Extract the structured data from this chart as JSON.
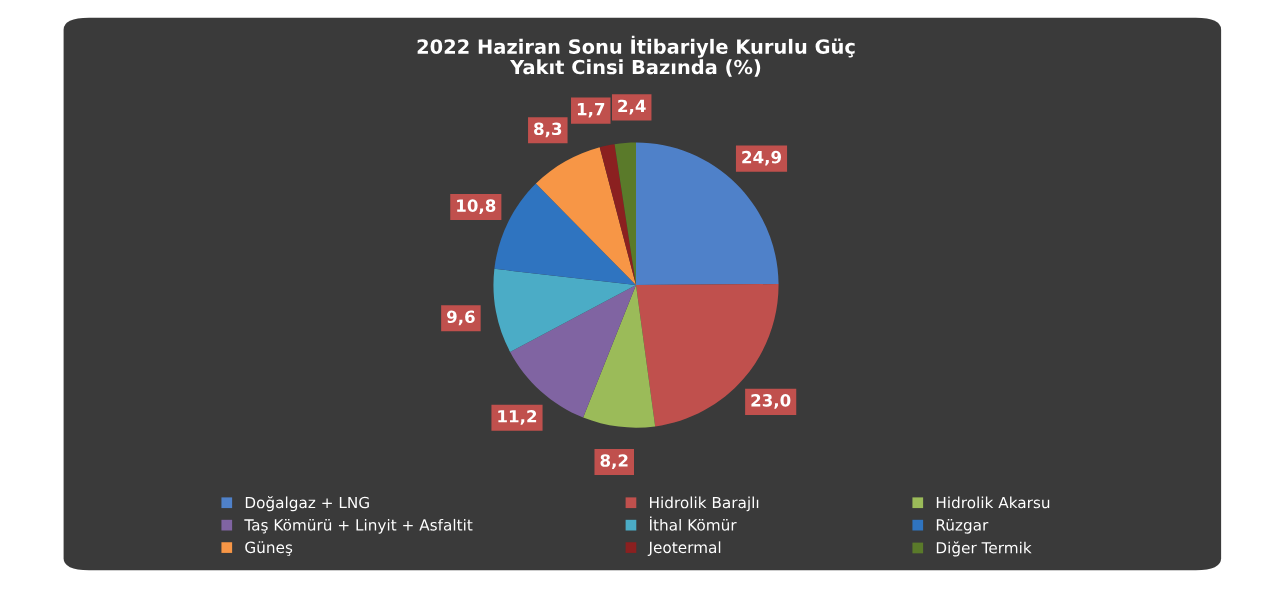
{
  "chart_data": {
    "type": "pie",
    "title": "2022 Haziran Sonu İtibariyle Kurulu Güç\nYakıt Cinsi Bazında (%)",
    "categories": [
      "Doğalgaz + LNG",
      "Hidrolik Barajlı",
      "Hidrolik Akarsu",
      "Taş Kömürü + Linyit + Asfaltit",
      "İthal Kömür",
      "Rüzgar",
      "Güneş",
      "Jeotermal",
      "Diğer Termik"
    ],
    "values": [
      24.9,
      23.0,
      8.2,
      11.2,
      9.6,
      10.8,
      8.3,
      1.7,
      2.4
    ],
    "value_labels": [
      "24,9",
      "23,0",
      "8,2",
      "11,2",
      "9,6",
      "10,8",
      "8,3",
      "1,7",
      "2,4"
    ],
    "colors": [
      "#4f81c9",
      "#c0504d",
      "#9bbb59",
      "#8064a2",
      "#4bacc6",
      "#2f74c0",
      "#f79646",
      "#8b2020",
      "#5a7a2a"
    ],
    "legend": "bottom"
  }
}
